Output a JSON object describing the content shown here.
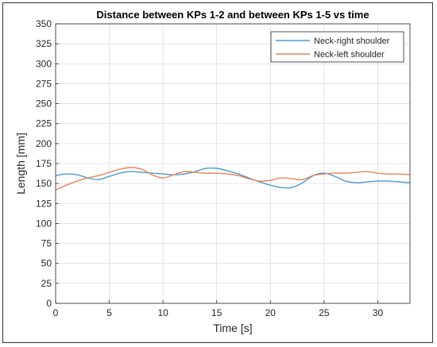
{
  "chart_data": {
    "type": "line",
    "title": "Distance between KPs 1-2 and between KPs 1-5 vs time",
    "xlabel": "Time [s]",
    "ylabel": "Length [mm]",
    "xlim": [
      0,
      33
    ],
    "ylim": [
      0,
      350
    ],
    "x_ticks": [
      0,
      5,
      10,
      15,
      20,
      25,
      30
    ],
    "y_ticks": [
      0,
      25,
      50,
      75,
      100,
      125,
      150,
      175,
      200,
      225,
      250,
      275,
      300,
      325,
      350
    ],
    "grid": true,
    "legend_position": "top-right",
    "series": [
      {
        "name": "Neck-right shoulder",
        "color": "#4a9bd0",
        "x": [
          0,
          1,
          2,
          3,
          4,
          5,
          6,
          7,
          8,
          9,
          10,
          11,
          12,
          13,
          14,
          15,
          16,
          17,
          18,
          19,
          20,
          21,
          22,
          23,
          24,
          25,
          26,
          27,
          28,
          29,
          30,
          31,
          32,
          33
        ],
        "y": [
          160,
          162,
          161,
          157,
          155,
          159,
          163,
          165,
          164,
          163,
          162,
          161,
          162,
          165,
          169,
          169,
          166,
          162,
          157,
          152,
          148,
          145,
          145,
          151,
          160,
          163,
          159,
          153,
          151,
          152,
          153,
          153,
          152,
          151
        ]
      },
      {
        "name": "Neck-left shoulder",
        "color": "#e8825a",
        "x": [
          0,
          1,
          2,
          3,
          4,
          5,
          6,
          7,
          8,
          9,
          10,
          11,
          12,
          13,
          14,
          15,
          16,
          17,
          18,
          19,
          20,
          21,
          22,
          23,
          24,
          25,
          26,
          27,
          28,
          29,
          30,
          31,
          32,
          33
        ],
        "y": [
          142,
          148,
          153,
          157,
          160,
          164,
          168,
          170,
          168,
          161,
          157,
          161,
          165,
          164,
          163,
          163,
          162,
          160,
          156,
          153,
          154,
          157,
          156,
          155,
          160,
          162,
          163,
          163,
          164,
          165,
          163,
          162,
          162,
          161
        ]
      }
    ]
  }
}
